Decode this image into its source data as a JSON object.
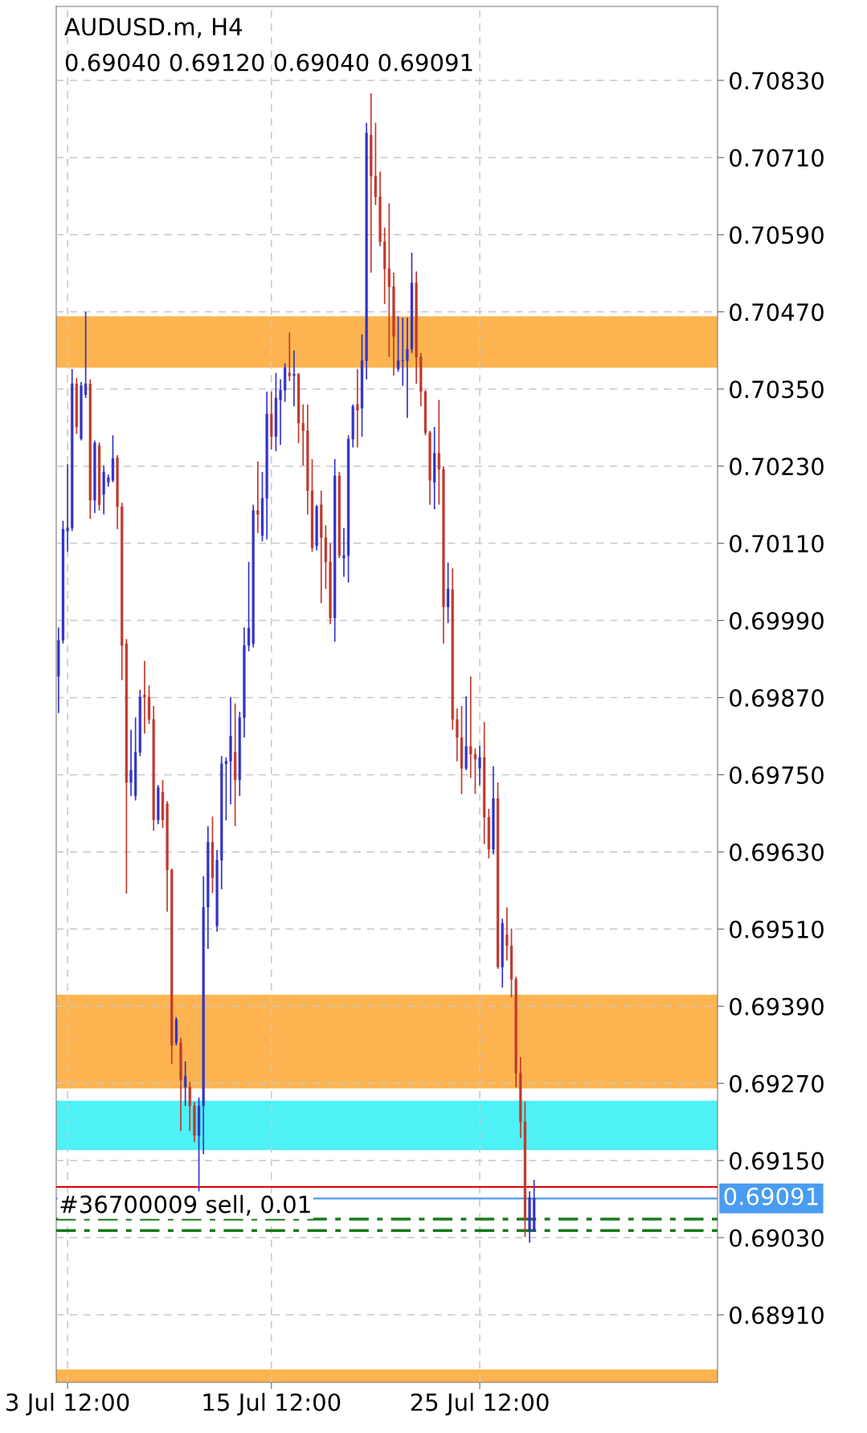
{
  "chart_data": {
    "type": "candlestick",
    "title": "AUDUSD.m, H4",
    "subtitle": "0.69040 0.69120 0.69040 0.69091",
    "categories": [
      null,
      null,
      "3 Jul 12:00",
      null,
      null,
      null,
      null,
      null,
      null,
      null,
      null,
      null,
      null,
      null,
      null,
      null,
      null,
      null,
      null,
      null,
      null,
      null,
      null,
      null,
      null,
      null,
      null,
      null,
      null,
      null,
      null,
      null,
      null,
      null,
      null,
      null,
      null,
      null,
      null,
      null,
      null,
      null,
      null,
      null,
      null,
      null,
      null,
      "15 Jul 12:00",
      null,
      null,
      null,
      null,
      null,
      null,
      null,
      null,
      null,
      null,
      null,
      null,
      null,
      null,
      null,
      null,
      null,
      null,
      null,
      null,
      null,
      null,
      null,
      null,
      null,
      null,
      null,
      null,
      null,
      null,
      null,
      null,
      null,
      null,
      null,
      null,
      null,
      null,
      null,
      null,
      null,
      null,
      null,
      null,
      null,
      "25 Jul 12:00",
      null,
      null,
      null,
      null,
      null,
      null,
      null,
      null,
      null,
      null,
      null,
      null,
      null,
      null,
      null,
      null,
      null,
      null,
      null,
      null,
      null,
      null,
      null,
      null,
      null,
      null,
      null,
      null,
      null,
      null,
      null,
      null,
      null,
      null,
      null,
      null,
      null,
      null,
      null,
      null,
      null,
      null,
      null,
      null,
      null,
      null,
      null,
      null,
      null,
      null,
      null,
      null
    ],
    "ohlc": [
      [
        0.69903,
        0.69979,
        0.69846,
        0.69959
      ],
      [
        0.69959,
        0.70145,
        0.69954,
        0.70132
      ],
      [
        0.70129,
        0.70233,
        0.70097,
        0.70134
      ],
      [
        0.70134,
        0.70381,
        0.70129,
        0.70358
      ],
      [
        0.70358,
        0.70367,
        0.7028,
        0.70291
      ],
      [
        0.70273,
        0.70361,
        0.7027,
        0.70355
      ],
      [
        0.70341,
        0.7047,
        0.70336,
        0.70358
      ],
      [
        0.70358,
        0.70365,
        0.70148,
        0.70177
      ],
      [
        0.70177,
        0.7027,
        0.70157,
        0.70266
      ],
      [
        0.70262,
        0.70267,
        0.70161,
        0.7017
      ],
      [
        0.70186,
        0.70231,
        0.70155,
        0.70221
      ],
      [
        0.70205,
        0.70217,
        0.70198,
        0.70212
      ],
      [
        0.70208,
        0.70278,
        0.70205,
        0.70242
      ],
      [
        0.70243,
        0.70247,
        0.70132,
        0.70167
      ],
      [
        0.70167,
        0.70173,
        0.69897,
        0.69951
      ],
      [
        0.69954,
        0.69961,
        0.69565,
        0.69738
      ],
      [
        0.69738,
        0.6982,
        0.69717,
        0.69757
      ],
      [
        0.69717,
        0.69839,
        0.6971,
        0.69785
      ],
      [
        0.69785,
        0.69882,
        0.69779,
        0.69871
      ],
      [
        0.69874,
        0.69927,
        0.69814,
        0.69871
      ],
      [
        0.69871,
        0.69889,
        0.69829,
        0.69836
      ],
      [
        0.69836,
        0.69857,
        0.69663,
        0.6968
      ],
      [
        0.6968,
        0.69734,
        0.69673,
        0.6973
      ],
      [
        0.69723,
        0.69742,
        0.69667,
        0.6968
      ],
      [
        0.69705,
        0.69709,
        0.69537,
        0.69602
      ],
      [
        0.69602,
        0.69604,
        0.693,
        0.69329
      ],
      [
        0.69333,
        0.69373,
        0.69329,
        0.69369
      ],
      [
        0.69333,
        0.69341,
        0.69196,
        0.69275
      ],
      [
        0.69264,
        0.69304,
        0.69235,
        0.69281
      ],
      [
        0.69264,
        0.69272,
        0.69196,
        0.69235
      ],
      [
        0.69235,
        0.69241,
        0.69179,
        0.69189
      ],
      [
        0.69189,
        0.69248,
        0.69102,
        0.69235
      ],
      [
        0.69235,
        0.69592,
        0.6916,
        0.69544
      ],
      [
        0.69544,
        0.6967,
        0.69479,
        0.69645
      ],
      [
        0.69645,
        0.69685,
        0.69566,
        0.6959
      ],
      [
        0.69515,
        0.69633,
        0.69506,
        0.69617
      ],
      [
        0.69617,
        0.69779,
        0.69572,
        0.69767
      ],
      [
        0.69767,
        0.69777,
        0.69679,
        0.69771
      ],
      [
        0.69771,
        0.69871,
        0.69704,
        0.6981
      ],
      [
        0.69785,
        0.69861,
        0.6967,
        0.69742
      ],
      [
        0.69742,
        0.69848,
        0.69717,
        0.69839
      ],
      [
        0.69839,
        0.69979,
        0.69808,
        0.69951
      ],
      [
        0.69951,
        0.70081,
        0.69942,
        0.69978
      ],
      [
        0.69954,
        0.7017,
        0.69948,
        0.70161
      ],
      [
        0.70161,
        0.70237,
        0.70126,
        0.70155
      ],
      [
        0.70122,
        0.70221,
        0.70113,
        0.7018
      ],
      [
        0.7018,
        0.70346,
        0.70116,
        0.70311
      ],
      [
        0.70311,
        0.70346,
        0.70256,
        0.70276
      ],
      [
        0.70276,
        0.70375,
        0.70253,
        0.70336
      ],
      [
        0.70333,
        0.70365,
        0.70263,
        0.70348
      ],
      [
        0.70348,
        0.7039,
        0.7033,
        0.70383
      ],
      [
        0.70375,
        0.70438,
        0.70362,
        0.7037
      ],
      [
        0.70371,
        0.7041,
        0.70323,
        0.70373
      ],
      [
        0.70373,
        0.70375,
        0.70266,
        0.70297
      ],
      [
        0.70297,
        0.70326,
        0.70231,
        0.70285
      ],
      [
        0.70285,
        0.70326,
        0.70155,
        0.70192
      ],
      [
        0.70192,
        0.70241,
        0.70097,
        0.70103
      ],
      [
        0.70106,
        0.7017,
        0.70099,
        0.70167
      ],
      [
        0.7017,
        0.70192,
        0.70017,
        0.70119
      ],
      [
        0.70119,
        0.70138,
        0.70039,
        0.70081
      ],
      [
        0.70081,
        0.7011,
        0.69984,
        0.69994
      ],
      [
        0.69994,
        0.70241,
        0.69957,
        0.70215
      ],
      [
        0.70215,
        0.70221,
        0.70087,
        0.70091
      ],
      [
        0.70087,
        0.70134,
        0.70058,
        0.70091
      ],
      [
        0.70091,
        0.70278,
        0.70049,
        0.70272
      ],
      [
        0.70272,
        0.70326,
        0.70259,
        0.70323
      ],
      [
        0.70326,
        0.70381,
        0.70259,
        0.70317
      ],
      [
        0.7032,
        0.70435,
        0.70276,
        0.70394
      ],
      [
        0.70394,
        0.70764,
        0.70365,
        0.70748
      ],
      [
        0.70745,
        0.7081,
        0.70531,
        0.70681
      ],
      [
        0.70681,
        0.70764,
        0.70636,
        0.70649
      ],
      [
        0.70649,
        0.70688,
        0.70572,
        0.70579
      ],
      [
        0.70579,
        0.70601,
        0.70482,
        0.70537
      ],
      [
        0.70537,
        0.70639,
        0.704,
        0.70509
      ],
      [
        0.70509,
        0.70531,
        0.70371,
        0.70432
      ],
      [
        0.70381,
        0.70463,
        0.70377,
        0.70394
      ],
      [
        0.70394,
        0.70461,
        0.70355,
        0.70395
      ],
      [
        0.70394,
        0.70461,
        0.70305,
        0.70412
      ],
      [
        0.70412,
        0.70562,
        0.70406,
        0.70515
      ],
      [
        0.70515,
        0.70533,
        0.70358,
        0.704
      ],
      [
        0.704,
        0.70406,
        0.70323,
        0.70346
      ],
      [
        0.70346,
        0.70348,
        0.70278,
        0.70282
      ],
      [
        0.70282,
        0.70285,
        0.7017,
        0.70208
      ],
      [
        0.70205,
        0.70291,
        0.70163,
        0.7025
      ],
      [
        0.7025,
        0.70333,
        0.7017,
        0.70225
      ],
      [
        0.70225,
        0.7023,
        0.69954,
        0.70011
      ],
      [
        0.70011,
        0.7008,
        0.69986,
        0.70039
      ],
      [
        0.70038,
        0.70071,
        0.6982,
        0.69836
      ],
      [
        0.69836,
        0.69853,
        0.69771,
        0.69808
      ],
      [
        0.69808,
        0.69857,
        0.6972,
        0.6976
      ],
      [
        0.6976,
        0.69872,
        0.69757,
        0.69794
      ],
      [
        0.69794,
        0.69903,
        0.69745,
        0.69782
      ],
      [
        0.69782,
        0.69791,
        0.6972,
        0.69774
      ],
      [
        0.6976,
        0.69795,
        0.69734,
        0.69777
      ],
      [
        0.69777,
        0.69832,
        0.69642,
        0.69684
      ],
      [
        0.69684,
        0.69697,
        0.6962,
        0.69634
      ],
      [
        0.69634,
        0.69763,
        0.69626,
        0.69713
      ],
      [
        0.69713,
        0.69738,
        0.69448,
        0.69451
      ],
      [
        0.69451,
        0.69526,
        0.69419,
        0.69519
      ],
      [
        0.69501,
        0.69544,
        0.69461,
        0.69484
      ],
      [
        0.69484,
        0.69511,
        0.69404,
        0.69432
      ],
      [
        0.69432,
        0.69436,
        0.69264,
        0.69286
      ],
      [
        0.69286,
        0.69311,
        0.69185,
        0.6921
      ],
      [
        0.6921,
        0.69242,
        0.69031,
        0.6906
      ],
      [
        0.69041,
        0.69102,
        0.69022,
        0.69092
      ],
      [
        0.6904,
        0.6912,
        0.6904,
        0.69091
      ],
      null,
      null,
      null,
      null,
      null,
      null,
      null,
      null,
      null,
      null,
      null,
      null,
      null,
      null,
      null,
      null,
      null,
      null,
      null,
      null,
      null,
      null,
      null,
      null,
      null,
      null,
      null,
      null,
      null,
      null,
      null,
      null,
      null,
      null,
      null,
      null,
      null,
      null,
      null,
      null
    ],
    "colors": [
      "#3232c8",
      "#3232c8",
      "#3232c8",
      "#3232c8",
      "#c0392b",
      "#3232c8",
      "#3232c8",
      "#c0392b",
      "#3232c8",
      "#c0392b",
      "#3232c8",
      "#3232c8",
      "#3232c8",
      "#c0392b",
      "#c0392b",
      "#c0392b",
      "#3232c8",
      "#3232c8",
      "#3232c8",
      "#c0392b",
      "#c0392b",
      "#c0392b",
      "#3232c8",
      "#c0392b",
      "#c0392b",
      "#c0392b",
      "#3232c8",
      "#c0392b",
      "#3232c8",
      "#c0392b",
      "#c0392b",
      "#3232c8",
      "#3232c8",
      "#3232c8",
      "#c0392b",
      "#3232c8",
      "#3232c8",
      "#3232c8",
      "#3232c8",
      "#c0392b",
      "#3232c8",
      "#3232c8",
      "#3232c8",
      "#3232c8",
      "#c0392b",
      "#3232c8",
      "#3232c8",
      "#c0392b",
      "#3232c8",
      "#3232c8",
      "#3232c8",
      "#c0392b",
      "#3232c8",
      "#c0392b",
      "#c0392b",
      "#c0392b",
      "#c0392b",
      "#3232c8",
      "#c0392b",
      "#c0392b",
      "#c0392b",
      "#3232c8",
      "#c0392b",
      "#3232c8",
      "#3232c8",
      "#3232c8",
      "#c0392b",
      "#3232c8",
      "#3232c8",
      "#c0392b",
      "#c0392b",
      "#c0392b",
      "#c0392b",
      "#c0392b",
      "#c0392b",
      "#3232c8",
      "#3232c8",
      "#3232c8",
      "#3232c8",
      "#c0392b",
      "#c0392b",
      "#c0392b",
      "#c0392b",
      "#3232c8",
      "#c0392b",
      "#c0392b",
      "#3232c8",
      "#c0392b",
      "#c0392b",
      "#c0392b",
      "#3232c8",
      "#c0392b",
      "#c0392b",
      "#3232c8",
      "#c0392b",
      "#c0392b",
      "#3232c8",
      "#c0392b",
      "#3232c8",
      "#c0392b",
      "#c0392b",
      "#c0392b",
      "#c0392b",
      "#c0392b",
      "#3232c8",
      "#3232c8",
      null,
      null,
      null,
      null,
      null,
      null,
      null,
      null,
      null,
      null,
      null,
      null,
      null,
      null,
      null,
      null,
      null,
      null,
      null,
      null,
      null,
      null,
      null,
      null,
      null,
      null,
      null,
      null,
      null,
      null,
      null,
      null,
      null,
      null,
      null,
      null,
      null,
      null,
      null,
      null
    ],
    "ylim": [
      0.68805,
      0.70945
    ],
    "yticks": [
      {
        "value": 0.6891,
        "label": "0.68910"
      },
      {
        "value": 0.6903,
        "label": "0.69030"
      },
      {
        "value": 0.6915,
        "label": "0.69150"
      },
      {
        "value": 0.6927,
        "label": "0.69270"
      },
      {
        "value": 0.6939,
        "label": "0.69390"
      },
      {
        "value": 0.6951,
        "label": "0.69510"
      },
      {
        "value": 0.6963,
        "label": "0.69630"
      },
      {
        "value": 0.6975,
        "label": "0.69750"
      },
      {
        "value": 0.6987,
        "label": "0.69870"
      },
      {
        "value": 0.6999,
        "label": "0.69990"
      },
      {
        "value": 0.7011,
        "label": "0.70110"
      },
      {
        "value": 0.7023,
        "label": "0.70230"
      },
      {
        "value": 0.7035,
        "label": "0.70350"
      },
      {
        "value": 0.7047,
        "label": "0.70470"
      },
      {
        "value": 0.7059,
        "label": "0.70590"
      },
      {
        "value": 0.7071,
        "label": "0.70710"
      },
      {
        "value": 0.7083,
        "label": "0.70830"
      }
    ],
    "grid": true,
    "bands": [
      {
        "axis": "y",
        "from": 0.70383,
        "to": 0.70463,
        "color": "#fdb450"
      },
      {
        "axis": "y",
        "from": 0.69262,
        "to": 0.69408,
        "color": "#fdb450"
      },
      {
        "axis": "y",
        "from": 0.69166,
        "to": 0.69243,
        "color": "#4ef1f5"
      },
      {
        "axis": "y",
        "from": 0.68805,
        "to": 0.68825,
        "color": "#fdb450"
      }
    ],
    "ref_lines": [
      {
        "axis": "y",
        "value": 0.69109,
        "color": "#e00000",
        "line_style": "solid"
      },
      {
        "axis": "y",
        "value": 0.69091,
        "label": "0.69091",
        "color": "#4a9cf0",
        "line_style": "solid"
      },
      {
        "axis": "y",
        "value": 0.69059,
        "label": "#36700009 sell, 0.01",
        "color": "#1a7a1a",
        "line_style": "dashed"
      },
      {
        "axis": "y",
        "value": 0.69041,
        "color": "#1a7a1a",
        "line_style": "dashed"
      }
    ]
  }
}
